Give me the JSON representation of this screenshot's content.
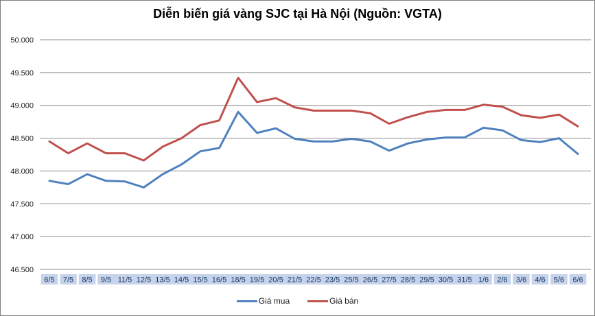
{
  "chart_data": {
    "type": "line",
    "title": "Diễn biến giá vàng SJC tại Hà Nội (Nguồn: VGTA)",
    "categories": [
      "6/5",
      "7/5",
      "8/5",
      "9/5",
      "11/5",
      "12/5",
      "13/5",
      "14/5",
      "15/5",
      "16/5",
      "18/5",
      "19/5",
      "20/5",
      "21/5",
      "22/5",
      "23/5",
      "25/5",
      "26/5",
      "27/5",
      "28/5",
      "29/5",
      "30/5",
      "31/5",
      "1/6",
      "2/6",
      "3/6",
      "4/6",
      "5/6",
      "6/6"
    ],
    "series": [
      {
        "name": "Giá mua",
        "color": "#4F81BD",
        "values": [
          47.85,
          47.8,
          47.95,
          47.85,
          47.84,
          47.75,
          47.95,
          48.1,
          48.3,
          48.35,
          48.9,
          48.58,
          48.65,
          48.49,
          48.45,
          48.45,
          48.49,
          48.45,
          48.31,
          48.42,
          48.48,
          48.51,
          48.51,
          48.66,
          48.62,
          48.47,
          48.44,
          48.5,
          48.26
        ]
      },
      {
        "name": "Giá bán",
        "color": "#C0504D",
        "values": [
          48.45,
          48.27,
          48.42,
          48.27,
          48.27,
          48.16,
          48.37,
          48.5,
          48.7,
          48.77,
          49.42,
          49.05,
          49.11,
          48.97,
          48.92,
          48.92,
          48.92,
          48.88,
          48.72,
          48.82,
          48.9,
          48.93,
          48.93,
          49.01,
          48.98,
          48.85,
          48.81,
          48.86,
          48.68
        ]
      }
    ],
    "ylim": [
      46.5,
      50.0
    ],
    "y_tick_step": 0.5,
    "y_tick_labels": [
      "50.000",
      "49.500",
      "49.000",
      "48.500",
      "48.000",
      "47.500",
      "47.000",
      "46.500"
    ],
    "grid": "horizontal",
    "legend_position": "bottom",
    "styles": {
      "gridline_color": "#8C8C8C",
      "x_label_background": "#C6D3EB",
      "x_label_text_color": "#17375E",
      "y_label_text_color": "#1A1A1A",
      "frame_border_color": "#7F7F7F",
      "background": "#FFFFFF"
    }
  }
}
